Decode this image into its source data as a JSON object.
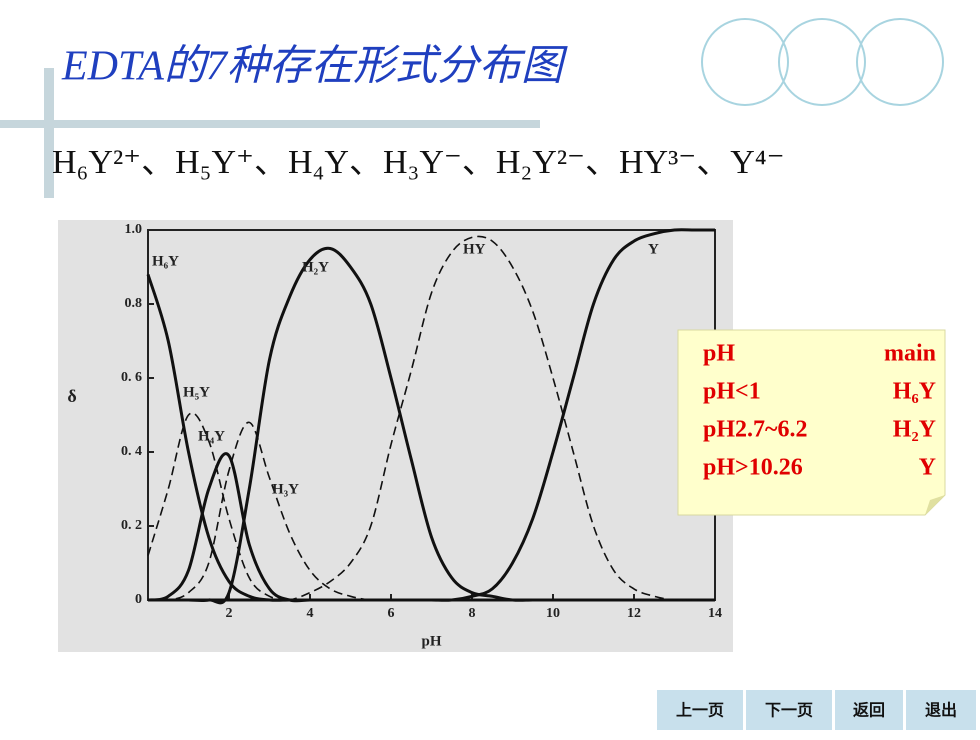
{
  "title": "EDTA的7种存在形式分布图",
  "species": "H₆Y²⁺、H₅Y⁺、H₄Y、H₃Y⁻、H₂Y²⁻、HY³⁻、Y⁴⁻",
  "chart_data": {
    "type": "line",
    "x": [
      0,
      0.5,
      1,
      1.5,
      2,
      2.5,
      3,
      3.5,
      4,
      4.5,
      5,
      5.5,
      6,
      6.5,
      7,
      7.5,
      8,
      8.5,
      9,
      9.5,
      10,
      10.5,
      11,
      11.5,
      12,
      12.5,
      13,
      13.5,
      14
    ],
    "series": [
      {
        "name": "H₆Y",
        "color": "#111111",
        "style": "solid",
        "values": [
          0.88,
          0.7,
          0.4,
          0.17,
          0.05,
          0.01,
          0,
          0,
          0,
          0,
          0,
          0,
          0,
          0,
          0,
          0,
          0,
          0,
          0,
          0,
          0,
          0,
          0,
          0,
          0,
          0,
          0,
          0,
          0
        ]
      },
      {
        "name": "H₅Y",
        "color": "#111111",
        "style": "dashed",
        "values": [
          0.12,
          0.3,
          0.5,
          0.43,
          0.22,
          0.06,
          0.01,
          0,
          0,
          0,
          0,
          0,
          0,
          0,
          0,
          0,
          0,
          0,
          0,
          0,
          0,
          0,
          0,
          0,
          0,
          0,
          0,
          0,
          0
        ]
      },
      {
        "name": "H₄Y",
        "color": "#111111",
        "style": "solid",
        "values": [
          0,
          0.01,
          0.08,
          0.3,
          0.39,
          0.15,
          0.03,
          0,
          0,
          0,
          0,
          0,
          0,
          0,
          0,
          0,
          0,
          0,
          0,
          0,
          0,
          0,
          0,
          0,
          0,
          0,
          0,
          0,
          0
        ]
      },
      {
        "name": "H₃Y",
        "color": "#111111",
        "style": "dashed",
        "values": [
          0,
          0,
          0.02,
          0.1,
          0.35,
          0.48,
          0.33,
          0.18,
          0.08,
          0.03,
          0.01,
          0,
          0,
          0,
          0,
          0,
          0,
          0,
          0,
          0,
          0,
          0,
          0,
          0,
          0,
          0,
          0,
          0,
          0
        ]
      },
      {
        "name": "H₂Y",
        "color": "#111111",
        "style": "solid",
        "values": [
          0,
          0,
          0,
          0,
          0.02,
          0.3,
          0.65,
          0.82,
          0.92,
          0.95,
          0.9,
          0.8,
          0.6,
          0.38,
          0.17,
          0.06,
          0.02,
          0.01,
          0,
          0,
          0,
          0,
          0,
          0,
          0,
          0,
          0,
          0,
          0
        ]
      },
      {
        "name": "HY",
        "color": "#111111",
        "style": "dashed",
        "values": [
          0,
          0,
          0,
          0,
          0,
          0,
          0,
          0,
          0.02,
          0.05,
          0.1,
          0.2,
          0.42,
          0.62,
          0.83,
          0.94,
          0.98,
          0.97,
          0.9,
          0.78,
          0.6,
          0.4,
          0.2,
          0.08,
          0.03,
          0.01,
          0,
          0,
          0
        ]
      },
      {
        "name": "Y",
        "color": "#111111",
        "style": "solid",
        "values": [
          0,
          0,
          0,
          0,
          0,
          0,
          0,
          0,
          0,
          0,
          0,
          0,
          0,
          0,
          0,
          0,
          0.01,
          0.03,
          0.1,
          0.22,
          0.4,
          0.6,
          0.8,
          0.92,
          0.97,
          0.99,
          1,
          1,
          1
        ]
      }
    ],
    "xlabel": "pH",
    "ylabel": "δ",
    "xlim": [
      0,
      14
    ],
    "ylim": [
      0,
      1
    ],
    "xticks": [
      2,
      4,
      6,
      8,
      10,
      12,
      14
    ],
    "yticks": [
      0,
      {
        "value": 0.2,
        "label": "0. 2"
      },
      {
        "value": 0.4,
        "label": "0. 4"
      },
      {
        "value": 0.6,
        "label": "0. 6"
      },
      {
        "value": 0.8,
        "label": "0.8"
      },
      {
        "value": 1,
        "label": "1.0"
      }
    ]
  },
  "note": {
    "rows": [
      [
        "pH",
        "main"
      ],
      [
        "pH<1",
        "H₆Y"
      ],
      [
        "pH2.7~6.2",
        "H₂Y"
      ],
      [
        "pH>10.26",
        "Y"
      ]
    ]
  },
  "nav": [
    "上一页",
    "下一页",
    "返回",
    "退出"
  ]
}
